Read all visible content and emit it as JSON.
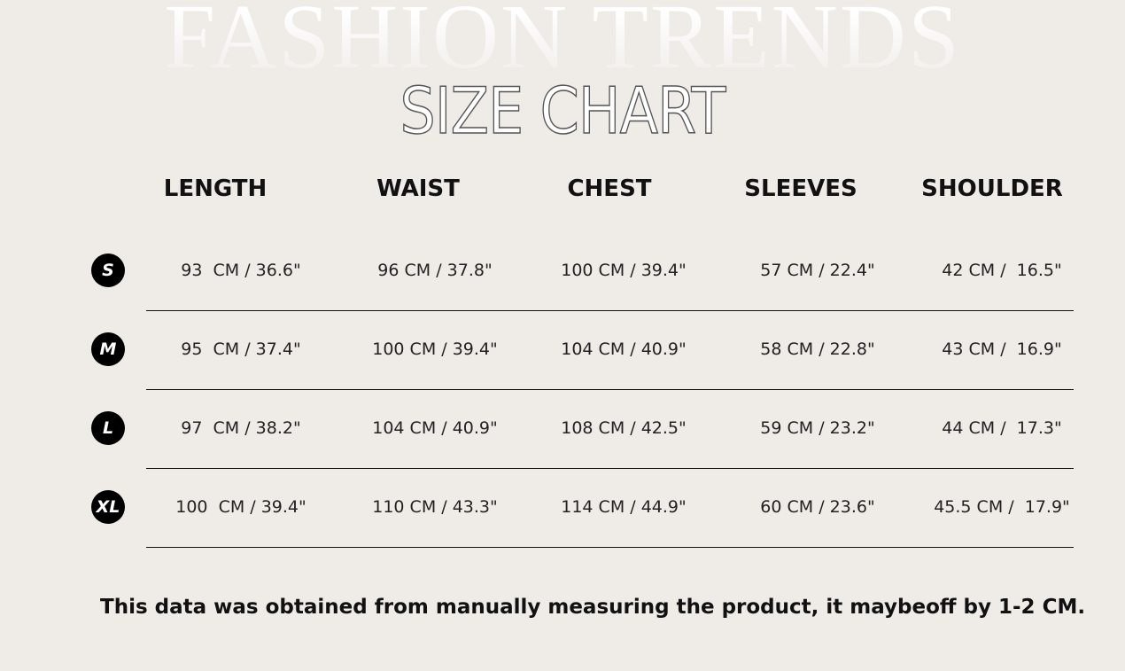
{
  "background_title": "FASHION TRENDS",
  "title": "SIZE CHART",
  "columns": [
    "LENGTH",
    "WAIST",
    "CHEST",
    "SLEEVES",
    "SHOULDER"
  ],
  "rows": [
    {
      "size": "S",
      "values": [
        "93  CM / 36.6\"",
        "96 CM / 37.8\"",
        "100 CM / 39.4\"",
        "57 CM / 22.4\"",
        "42 CM /  16.5\""
      ]
    },
    {
      "size": "M",
      "values": [
        "95  CM / 37.4\"",
        "100 CM / 39.4\"",
        "104 CM / 40.9\"",
        "58 CM / 22.8\"",
        "43 CM /  16.9\""
      ]
    },
    {
      "size": "L",
      "values": [
        "97  CM / 38.2\"",
        "104 CM / 40.9\"",
        "108 CM / 42.5\"",
        "59 CM / 23.2\"",
        "44 CM /  17.3\""
      ]
    },
    {
      "size": "XL",
      "values": [
        "100  CM / 39.4\"",
        "110 CM / 43.3\"",
        "114 CM / 44.9\"",
        "60 CM / 23.6\"",
        "45.5 CM /  17.9\""
      ]
    }
  ],
  "note": "This data was obtained from manually measuring the product, it maybeoff by 1-2 CM.",
  "colors": {
    "background": "#efebe7",
    "badge": "#000000",
    "text": "#111111"
  }
}
